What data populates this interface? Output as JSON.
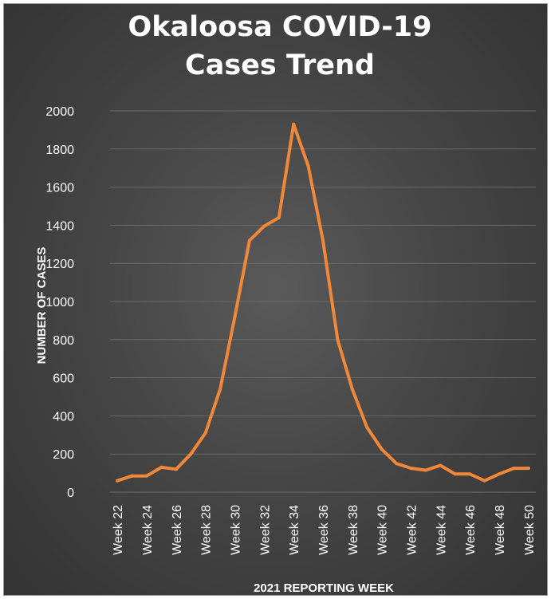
{
  "chart_data": {
    "type": "line",
    "title": [
      "Okaloosa COVID-19",
      "Cases Trend"
    ],
    "xlabel": "2021 REPORTING WEEK",
    "ylabel": "NUMBER OF CASES",
    "ylim": [
      0,
      2000
    ],
    "y_ticks": [
      0,
      200,
      400,
      600,
      800,
      1000,
      1200,
      1400,
      1600,
      1800,
      2000
    ],
    "categories": [
      "Week 22",
      "Week 23",
      "Week 24",
      "Week 25",
      "Week 26",
      "Week 27",
      "Week 28",
      "Week 29",
      "Week 30",
      "Week 31",
      "Week 32",
      "Week 33",
      "Week 34",
      "Week 35",
      "Week 36",
      "Week 37",
      "Week 38",
      "Week 39",
      "Week 40",
      "Week 41",
      "Week 42",
      "Week 43",
      "Week 44",
      "Week 45",
      "Week 46",
      "Week 47",
      "Week 48",
      "Week 49",
      "Week 50"
    ],
    "x_tick_labels": [
      "Week 22",
      "Week 24",
      "Week 26",
      "Week 28",
      "Week 30",
      "Week 32",
      "Week 34",
      "Week 36",
      "Week 38",
      "Week 40",
      "Week 42",
      "Week 44",
      "Week 46",
      "Week 48",
      "Week 50"
    ],
    "values": [
      60,
      85,
      85,
      130,
      120,
      200,
      310,
      540,
      920,
      1320,
      1395,
      1440,
      1930,
      1710,
      1320,
      800,
      540,
      340,
      225,
      150,
      125,
      115,
      140,
      95,
      95,
      60,
      95,
      125,
      125
    ],
    "grid": true,
    "legend": "none",
    "colors": {
      "line": "#F0883A",
      "background": "#3a3a3a",
      "gridline": "#6a6a6a",
      "text": "#ffffff"
    }
  }
}
